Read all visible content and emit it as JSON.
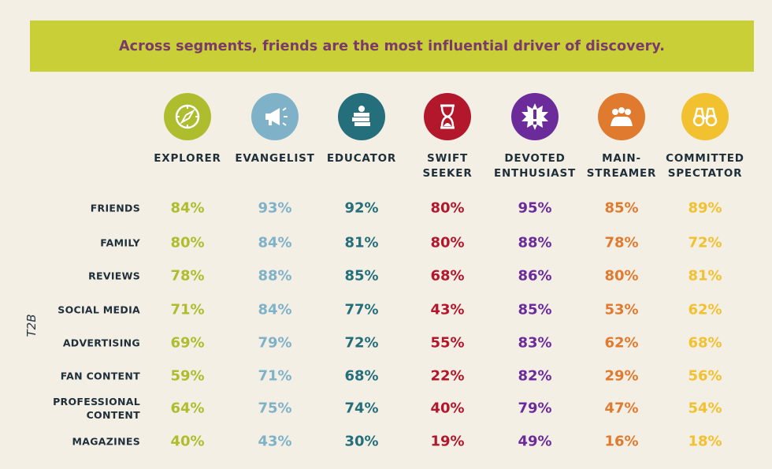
{
  "title": "Across segments, friends are the most influential driver of discovery.",
  "side_label": "T2B",
  "segments": [
    {
      "label_1": "EXPLORER",
      "label_2": "",
      "color": "#aebd2e",
      "icon": "compass-icon"
    },
    {
      "label_1": "EVANGELIST",
      "label_2": "",
      "color": "#7fb2c8",
      "icon": "megaphone-icon"
    },
    {
      "label_1": "EDUCATOR",
      "label_2": "",
      "color": "#246f7b",
      "icon": "books-apple-icon"
    },
    {
      "label_1": "SWIFT",
      "label_2": "SEEKER",
      "color": "#b2172b",
      "icon": "hourglass-icon"
    },
    {
      "label_1": "DEVOTED",
      "label_2": "ENTHUSIAST",
      "color": "#6b2b9b",
      "icon": "exclamation-burst-icon"
    },
    {
      "label_1": "MAIN-",
      "label_2": "STREAMER",
      "color": "#e07a2f",
      "icon": "crowd-icon"
    },
    {
      "label_1": "COMMITTED",
      "label_2": "SPECTATOR",
      "color": "#f2c12f",
      "icon": "binoculars-icon"
    }
  ],
  "chart_data": {
    "type": "table",
    "title": "Across segments, friends are the most influential driver of discovery.",
    "ylabel": "T2B",
    "columns": [
      "EXPLORER",
      "EVANGELIST",
      "EDUCATOR",
      "SWIFT SEEKER",
      "DEVOTED ENTHUSIAST",
      "MAIN-STREAMER",
      "COMMITTED SPECTATOR"
    ],
    "rows": [
      {
        "label_1": "FRIENDS",
        "label_2": "",
        "values": [
          "84%",
          "93%",
          "92%",
          "80%",
          "95%",
          "85%",
          "89%"
        ]
      },
      {
        "label_1": "FAMILY",
        "label_2": "",
        "values": [
          "80%",
          "84%",
          "81%",
          "80%",
          "88%",
          "78%",
          "72%"
        ]
      },
      {
        "label_1": "REVIEWS",
        "label_2": "",
        "values": [
          "78%",
          "88%",
          "85%",
          "68%",
          "86%",
          "80%",
          "81%"
        ]
      },
      {
        "label_1": "SOCIAL MEDIA",
        "label_2": "",
        "values": [
          "71%",
          "84%",
          "77%",
          "43%",
          "85%",
          "53%",
          "62%"
        ]
      },
      {
        "label_1": "ADVERTISING",
        "label_2": "",
        "values": [
          "69%",
          "79%",
          "72%",
          "55%",
          "83%",
          "62%",
          "68%"
        ]
      },
      {
        "label_1": "FAN CONTENT",
        "label_2": "",
        "values": [
          "59%",
          "71%",
          "68%",
          "22%",
          "82%",
          "29%",
          "56%"
        ]
      },
      {
        "label_1": "PROFESSIONAL",
        "label_2": "CONTENT",
        "values": [
          "64%",
          "75%",
          "74%",
          "40%",
          "79%",
          "47%",
          "54%"
        ]
      },
      {
        "label_1": "MAGAZINES",
        "label_2": "",
        "values": [
          "40%",
          "43%",
          "30%",
          "19%",
          "49%",
          "16%",
          "18%"
        ]
      }
    ]
  }
}
